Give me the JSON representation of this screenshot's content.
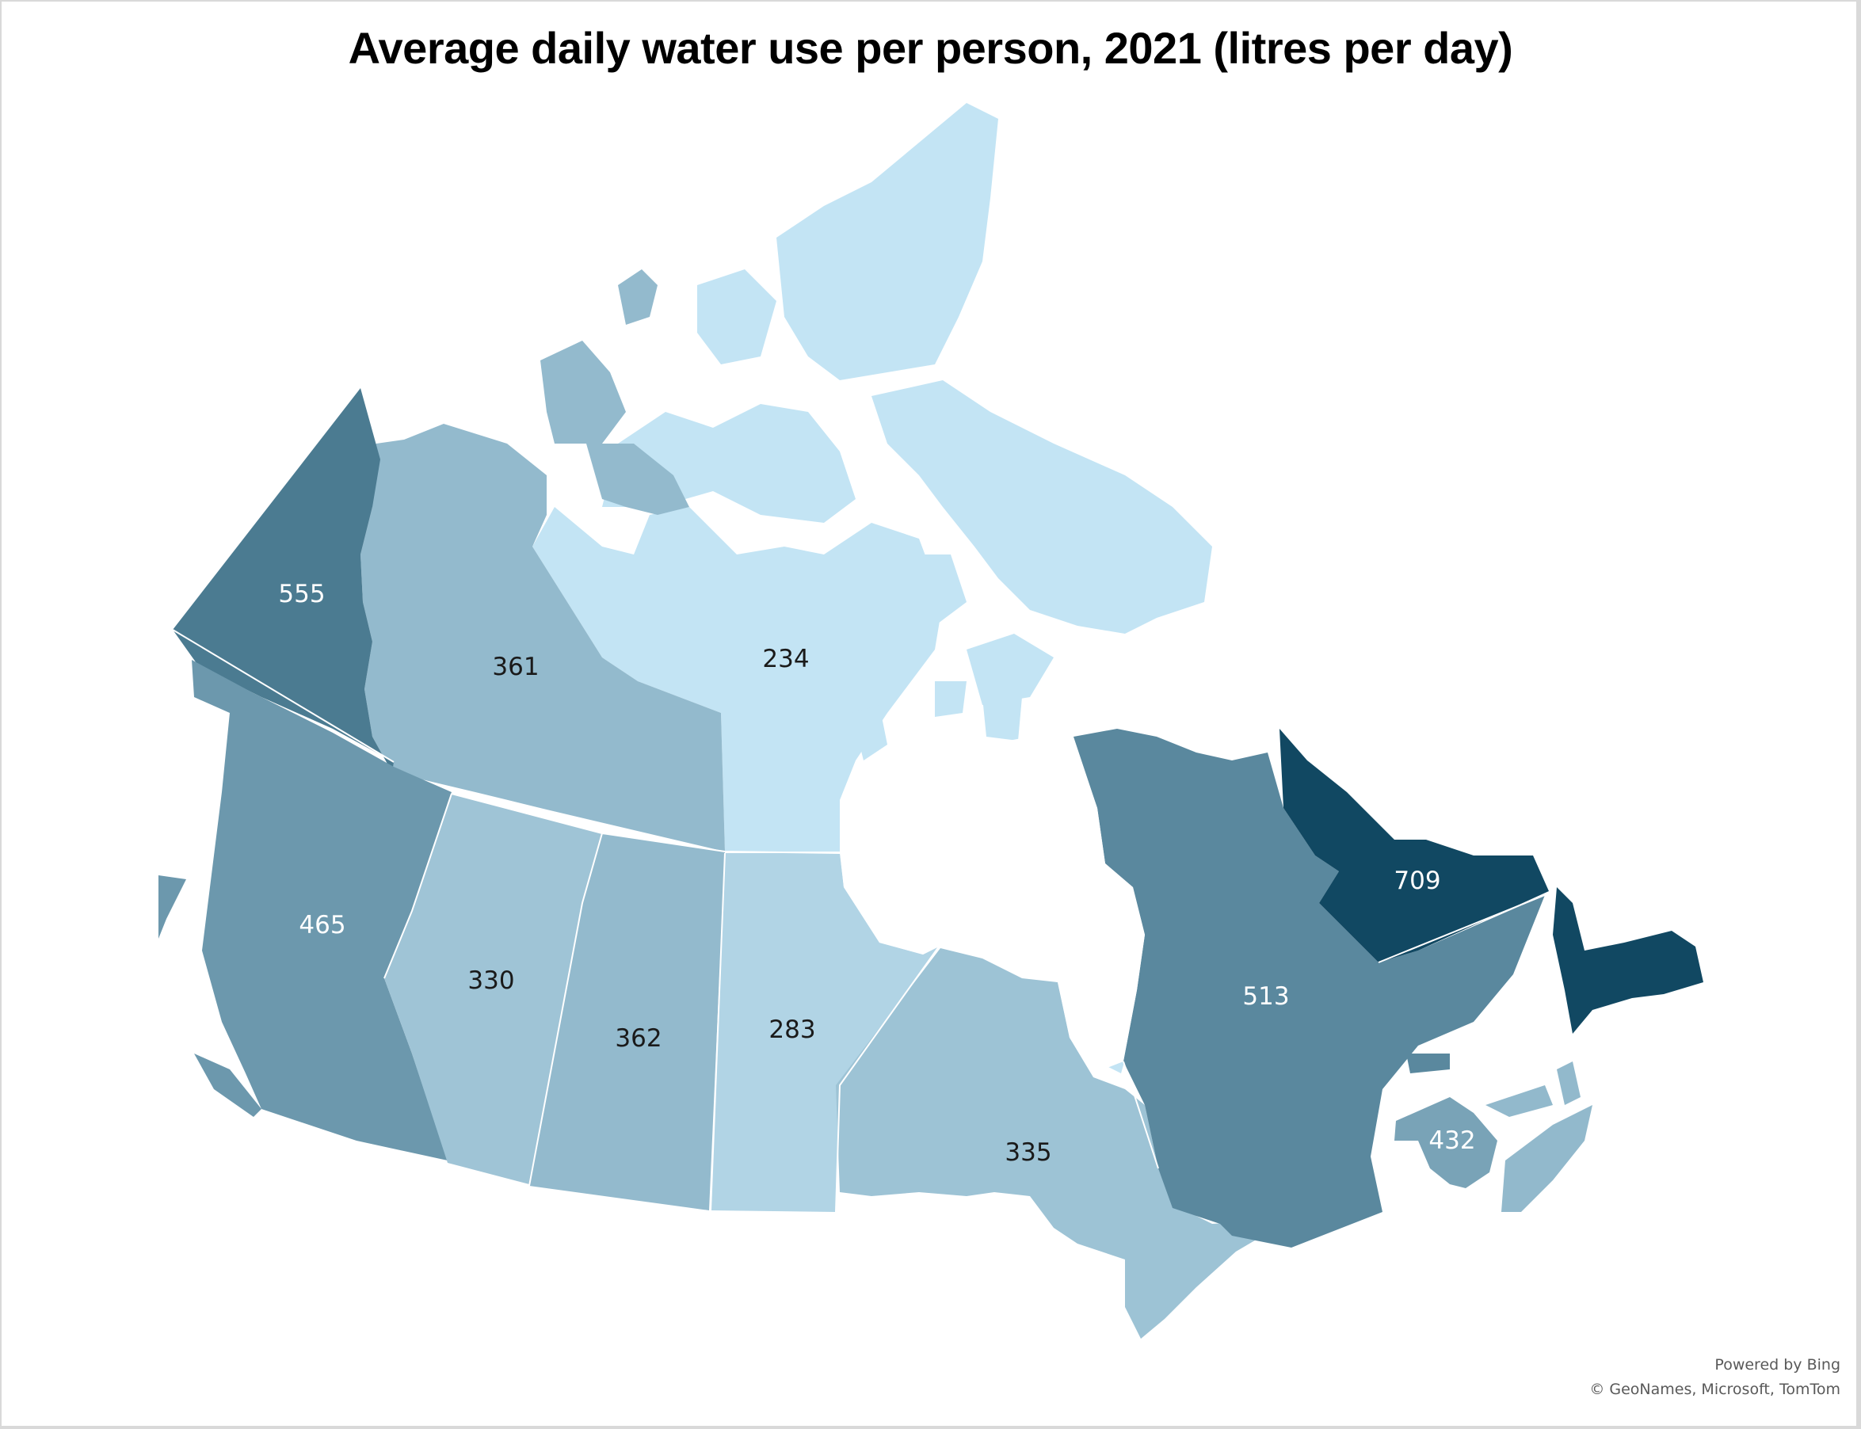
{
  "title": "Average daily water use per person, 2021 (litres per day)",
  "attribution": {
    "line1": "Powered by Bing",
    "line2": "© GeoNames, Microsoft, TomTom"
  },
  "chart_data": {
    "type": "choropleth",
    "title": "Average daily water use per person, 2021 (litres per day)",
    "unit": "litres per day",
    "color_scale": {
      "low": "#c3e4f4",
      "high": "#114862"
    },
    "regions": [
      {
        "id": "yukon",
        "label": "555",
        "value": 555
      },
      {
        "id": "northwest-territories",
        "label": "361",
        "value": 361
      },
      {
        "id": "nunavut",
        "label": "234",
        "value": 234
      },
      {
        "id": "british-columbia",
        "label": "465",
        "value": 465
      },
      {
        "id": "alberta",
        "label": "330",
        "value": 330
      },
      {
        "id": "saskatchewan",
        "label": "362",
        "value": 362
      },
      {
        "id": "manitoba",
        "label": "283",
        "value": 283
      },
      {
        "id": "ontario",
        "label": "335",
        "value": 335
      },
      {
        "id": "quebec",
        "label": "513",
        "value": 513
      },
      {
        "id": "newfoundland-and-labrador",
        "label": "709",
        "value": 709
      },
      {
        "id": "new-brunswick",
        "label": "432",
        "value": 432
      }
    ]
  }
}
